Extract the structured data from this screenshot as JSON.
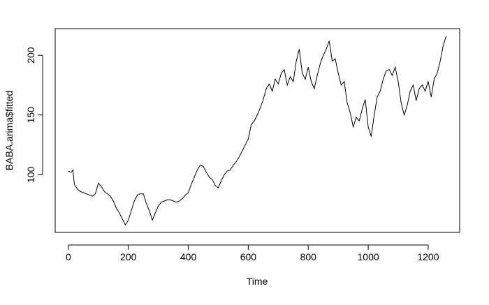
{
  "chart_data": {
    "type": "line",
    "x_label": "Time",
    "y_label": "BABA.arima$fitted",
    "x": [
      0,
      10,
      15,
      20,
      30,
      40,
      50,
      60,
      70,
      80,
      90,
      100,
      110,
      120,
      130,
      140,
      150,
      160,
      170,
      180,
      190,
      200,
      210,
      220,
      230,
      240,
      250,
      260,
      270,
      280,
      290,
      300,
      310,
      320,
      330,
      340,
      350,
      360,
      370,
      380,
      390,
      400,
      410,
      420,
      430,
      440,
      450,
      460,
      470,
      480,
      490,
      500,
      510,
      520,
      530,
      540,
      550,
      560,
      570,
      580,
      590,
      600,
      610,
      620,
      630,
      640,
      650,
      660,
      670,
      680,
      690,
      700,
      710,
      720,
      730,
      740,
      750,
      760,
      770,
      780,
      790,
      800,
      810,
      820,
      830,
      840,
      850,
      860,
      870,
      880,
      890,
      900,
      910,
      920,
      930,
      940,
      950,
      960,
      970,
      980,
      990,
      1000,
      1010,
      1020,
      1030,
      1040,
      1050,
      1060,
      1070,
      1080,
      1090,
      1100,
      1110,
      1120,
      1130,
      1140,
      1150,
      1160,
      1170,
      1180,
      1190,
      1200,
      1210,
      1220,
      1230,
      1240,
      1250,
      1260
    ],
    "series": [
      {
        "name": "BABA.arima$fitted",
        "color": "#000000",
        "values": [
          103,
          102,
          104,
          92,
          88,
          86,
          85,
          84,
          83,
          82,
          84,
          93,
          90,
          86,
          84,
          82,
          78,
          72,
          68,
          63,
          58,
          62,
          70,
          78,
          83,
          84,
          84,
          76,
          70,
          62,
          68,
          74,
          77,
          78,
          79,
          79,
          78,
          77,
          78,
          80,
          83,
          85,
          92,
          98,
          104,
          108,
          107,
          102,
          98,
          96,
          91,
          89,
          95,
          100,
          103,
          104,
          108,
          111,
          115,
          120,
          125,
          130,
          142,
          145,
          150,
          156,
          163,
          172,
          176,
          170,
          180,
          176,
          185,
          188,
          175,
          182,
          178,
          195,
          205,
          185,
          180,
          190,
          178,
          172,
          183,
          193,
          200,
          205,
          212,
          195,
          197,
          185,
          175,
          178,
          160,
          152,
          140,
          148,
          145,
          155,
          163,
          140,
          132,
          150,
          165,
          170,
          180,
          187,
          188,
          183,
          190,
          178,
          160,
          150,
          158,
          170,
          175,
          162,
          172,
          175,
          170,
          178,
          165,
          180,
          185,
          195,
          208,
          216
        ]
      }
    ],
    "xlim": [
      -44,
      1305
    ],
    "ylim": [
      51.7,
      222.3
    ],
    "xticks": [
      0,
      200,
      400,
      600,
      800,
      1000,
      1200
    ],
    "yticks": [
      100,
      150,
      200
    ]
  }
}
